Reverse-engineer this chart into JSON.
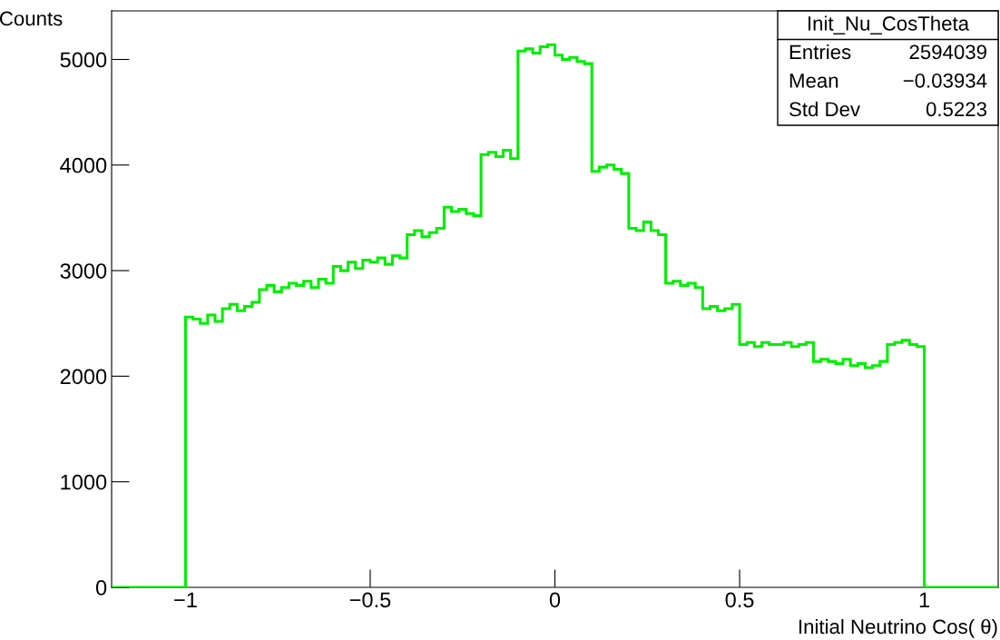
{
  "chart_data": {
    "type": "histogram",
    "xlabel": "Initial Neutrino Cos( θ)",
    "ylabel": "Counts",
    "color": "#00ee00",
    "bins": [
      -1.2,
      -1.0,
      -0.98,
      -0.96,
      -0.94,
      -0.92,
      -0.9,
      -0.88,
      -0.86,
      -0.84,
      -0.82,
      -0.8,
      -0.78,
      -0.76,
      -0.74,
      -0.72,
      -0.7,
      -0.68,
      -0.66,
      -0.64,
      -0.62,
      -0.6,
      -0.58,
      -0.56,
      -0.54,
      -0.52,
      -0.5,
      -0.48,
      -0.46,
      -0.44,
      -0.42,
      -0.4,
      -0.38,
      -0.36,
      -0.34,
      -0.32,
      -0.3,
      -0.28,
      -0.26,
      -0.24,
      -0.22,
      -0.2,
      -0.18,
      -0.16,
      -0.14,
      -0.12,
      -0.1,
      -0.08,
      -0.06,
      -0.04,
      -0.02,
      0.0,
      0.02,
      0.04,
      0.06,
      0.08,
      0.1,
      0.12,
      0.14,
      0.16,
      0.18,
      0.2,
      0.22,
      0.24,
      0.26,
      0.28,
      0.3,
      0.32,
      0.34,
      0.36,
      0.38,
      0.4,
      0.42,
      0.44,
      0.46,
      0.48,
      0.5,
      0.52,
      0.54,
      0.56,
      0.58,
      0.6,
      0.62,
      0.64,
      0.66,
      0.68,
      0.7,
      0.72,
      0.74,
      0.76,
      0.78,
      0.8,
      0.82,
      0.84,
      0.86,
      0.88,
      0.9,
      0.92,
      0.94,
      0.96,
      0.98,
      1.0,
      1.2
    ],
    "values": [
      0,
      2560,
      2540,
      2500,
      2580,
      2520,
      2640,
      2680,
      2620,
      2660,
      2700,
      2820,
      2860,
      2800,
      2840,
      2880,
      2860,
      2900,
      2840,
      2920,
      2880,
      3040,
      3000,
      3080,
      3020,
      3100,
      3080,
      3120,
      3060,
      3140,
      3120,
      3340,
      3380,
      3320,
      3360,
      3400,
      3600,
      3560,
      3580,
      3540,
      3520,
      4100,
      4120,
      4080,
      4140,
      4060,
      5080,
      5100,
      5060,
      5120,
      5140,
      5040,
      5000,
      5020,
      4980,
      4960,
      3940,
      3980,
      4000,
      3960,
      3920,
      3400,
      3380,
      3460,
      3380,
      3340,
      2880,
      2900,
      2860,
      2880,
      2840,
      2640,
      2660,
      2620,
      2640,
      2680,
      2300,
      2320,
      2280,
      2320,
      2300,
      2300,
      2320,
      2280,
      2300,
      2320,
      2140,
      2160,
      2140,
      2120,
      2160,
      2100,
      2120,
      2080,
      2100,
      2140,
      2300,
      2320,
      2340,
      2300,
      2280,
      0
    ],
    "xlim": [
      -1.2,
      1.2
    ],
    "ylim": [
      0,
      5460
    ],
    "xticks": [
      {
        "value": -1,
        "label": "−1"
      },
      {
        "value": -0.5,
        "label": "−0.5"
      },
      0,
      0.5,
      1
    ],
    "yticks": [
      0,
      1000,
      2000,
      3000,
      4000,
      5000
    ],
    "grid": false,
    "annotations": [
      "Init_Nu_CosTheta",
      "Entries",
      "2594039",
      "Mean",
      "−0.03934",
      "Std Dev",
      "0.5223"
    ]
  }
}
